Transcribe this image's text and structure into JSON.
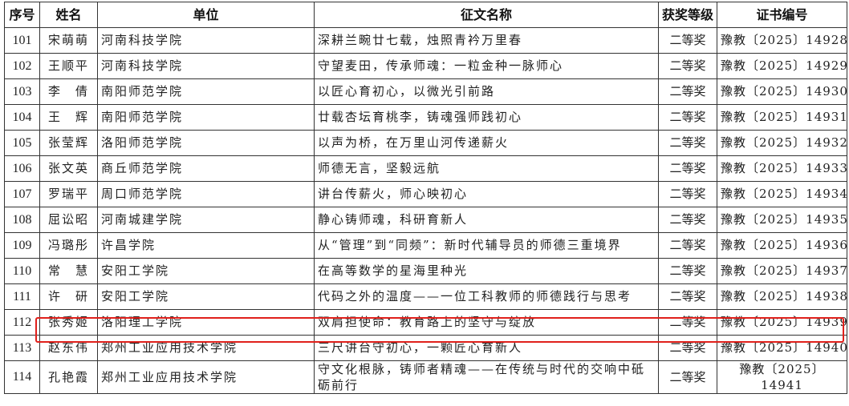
{
  "headers": [
    "序号",
    "姓名",
    "单位",
    "征文名称",
    "获奖等级",
    "证书编号"
  ],
  "rows": [
    {
      "no": "101",
      "name": "宋萌萌",
      "unit": "河南科技学院",
      "title": "深耕兰畹廿七载，烛照青衿万里春",
      "award": "二等奖",
      "cert": "豫教〔2025〕14928"
    },
    {
      "no": "102",
      "name": "王顺平",
      "unit": "河南科技学院",
      "title": "守望麦田，传承师魂：一粒金种一脉师心",
      "award": "二等奖",
      "cert": "豫教〔2025〕14929"
    },
    {
      "no": "103",
      "name": "李　倩",
      "unit": "南阳师范学院",
      "title": "以匠心育初心，以微光引前路",
      "award": "二等奖",
      "cert": "豫教〔2025〕14930"
    },
    {
      "no": "104",
      "name": "王　辉",
      "unit": "南阳师范学院",
      "title": "廿载杏坛育桃李，铸魂强师践初心",
      "award": "二等奖",
      "cert": "豫教〔2025〕14931"
    },
    {
      "no": "105",
      "name": "张莹辉",
      "unit": "洛阳师范学院",
      "title": "以声为桥，在万里山河传递薪火",
      "award": "二等奖",
      "cert": "豫教〔2025〕14932"
    },
    {
      "no": "106",
      "name": "张文英",
      "unit": "商丘师范学院",
      "title": "师德无言，坚毅远航",
      "award": "二等奖",
      "cert": "豫教〔2025〕14933"
    },
    {
      "no": "107",
      "name": "罗瑞平",
      "unit": "周口师范学院",
      "title": "讲台传薪火，师心映初心",
      "award": "二等奖",
      "cert": "豫教〔2025〕14934"
    },
    {
      "no": "108",
      "name": "屈讼昭",
      "unit": "河南城建学院",
      "title": "静心铸师魂，科研育新人",
      "award": "二等奖",
      "cert": "豫教〔2025〕14935"
    },
    {
      "no": "109",
      "name": "冯璐彤",
      "unit": "许昌学院",
      "title": "从“管理”到“同频”：新时代辅导员的师德三重境界",
      "award": "二等奖",
      "cert": "豫教〔2025〕14936"
    },
    {
      "no": "110",
      "name": "常　慧",
      "unit": "安阳工学院",
      "title": "在高等数学的星海里种光",
      "award": "二等奖",
      "cert": "豫教〔2025〕14937"
    },
    {
      "no": "111",
      "name": "许　研",
      "unit": "安阳工学院",
      "title": "代码之外的温度——一位工科教师的师德践行与思考",
      "award": "二等奖",
      "cert": "豫教〔2025〕14938"
    },
    {
      "no": "112",
      "name": "张秀姬",
      "unit": "洛阳理工学院",
      "title": "双肩担使命：教育路上的坚守与绽放",
      "award": "二等奖",
      "cert": "豫教〔2025〕14939"
    },
    {
      "no": "113",
      "name": "赵东伟",
      "unit": "郑州工业应用技术学院",
      "title": "三尺讲台守初心，一颗匠心育新人",
      "award": "二等奖",
      "cert": "豫教〔2025〕14940"
    },
    {
      "no": "114",
      "name": "孔艳霞",
      "unit": "郑州工业应用技术学院",
      "title": "守文化根脉，铸师者精魂——在传统与时代的交响中砥砺前行",
      "award": "二等奖",
      "cert": "豫教〔2025〕14941"
    }
  ],
  "highlighted_row": "112",
  "highlight_color": "#e0201b"
}
